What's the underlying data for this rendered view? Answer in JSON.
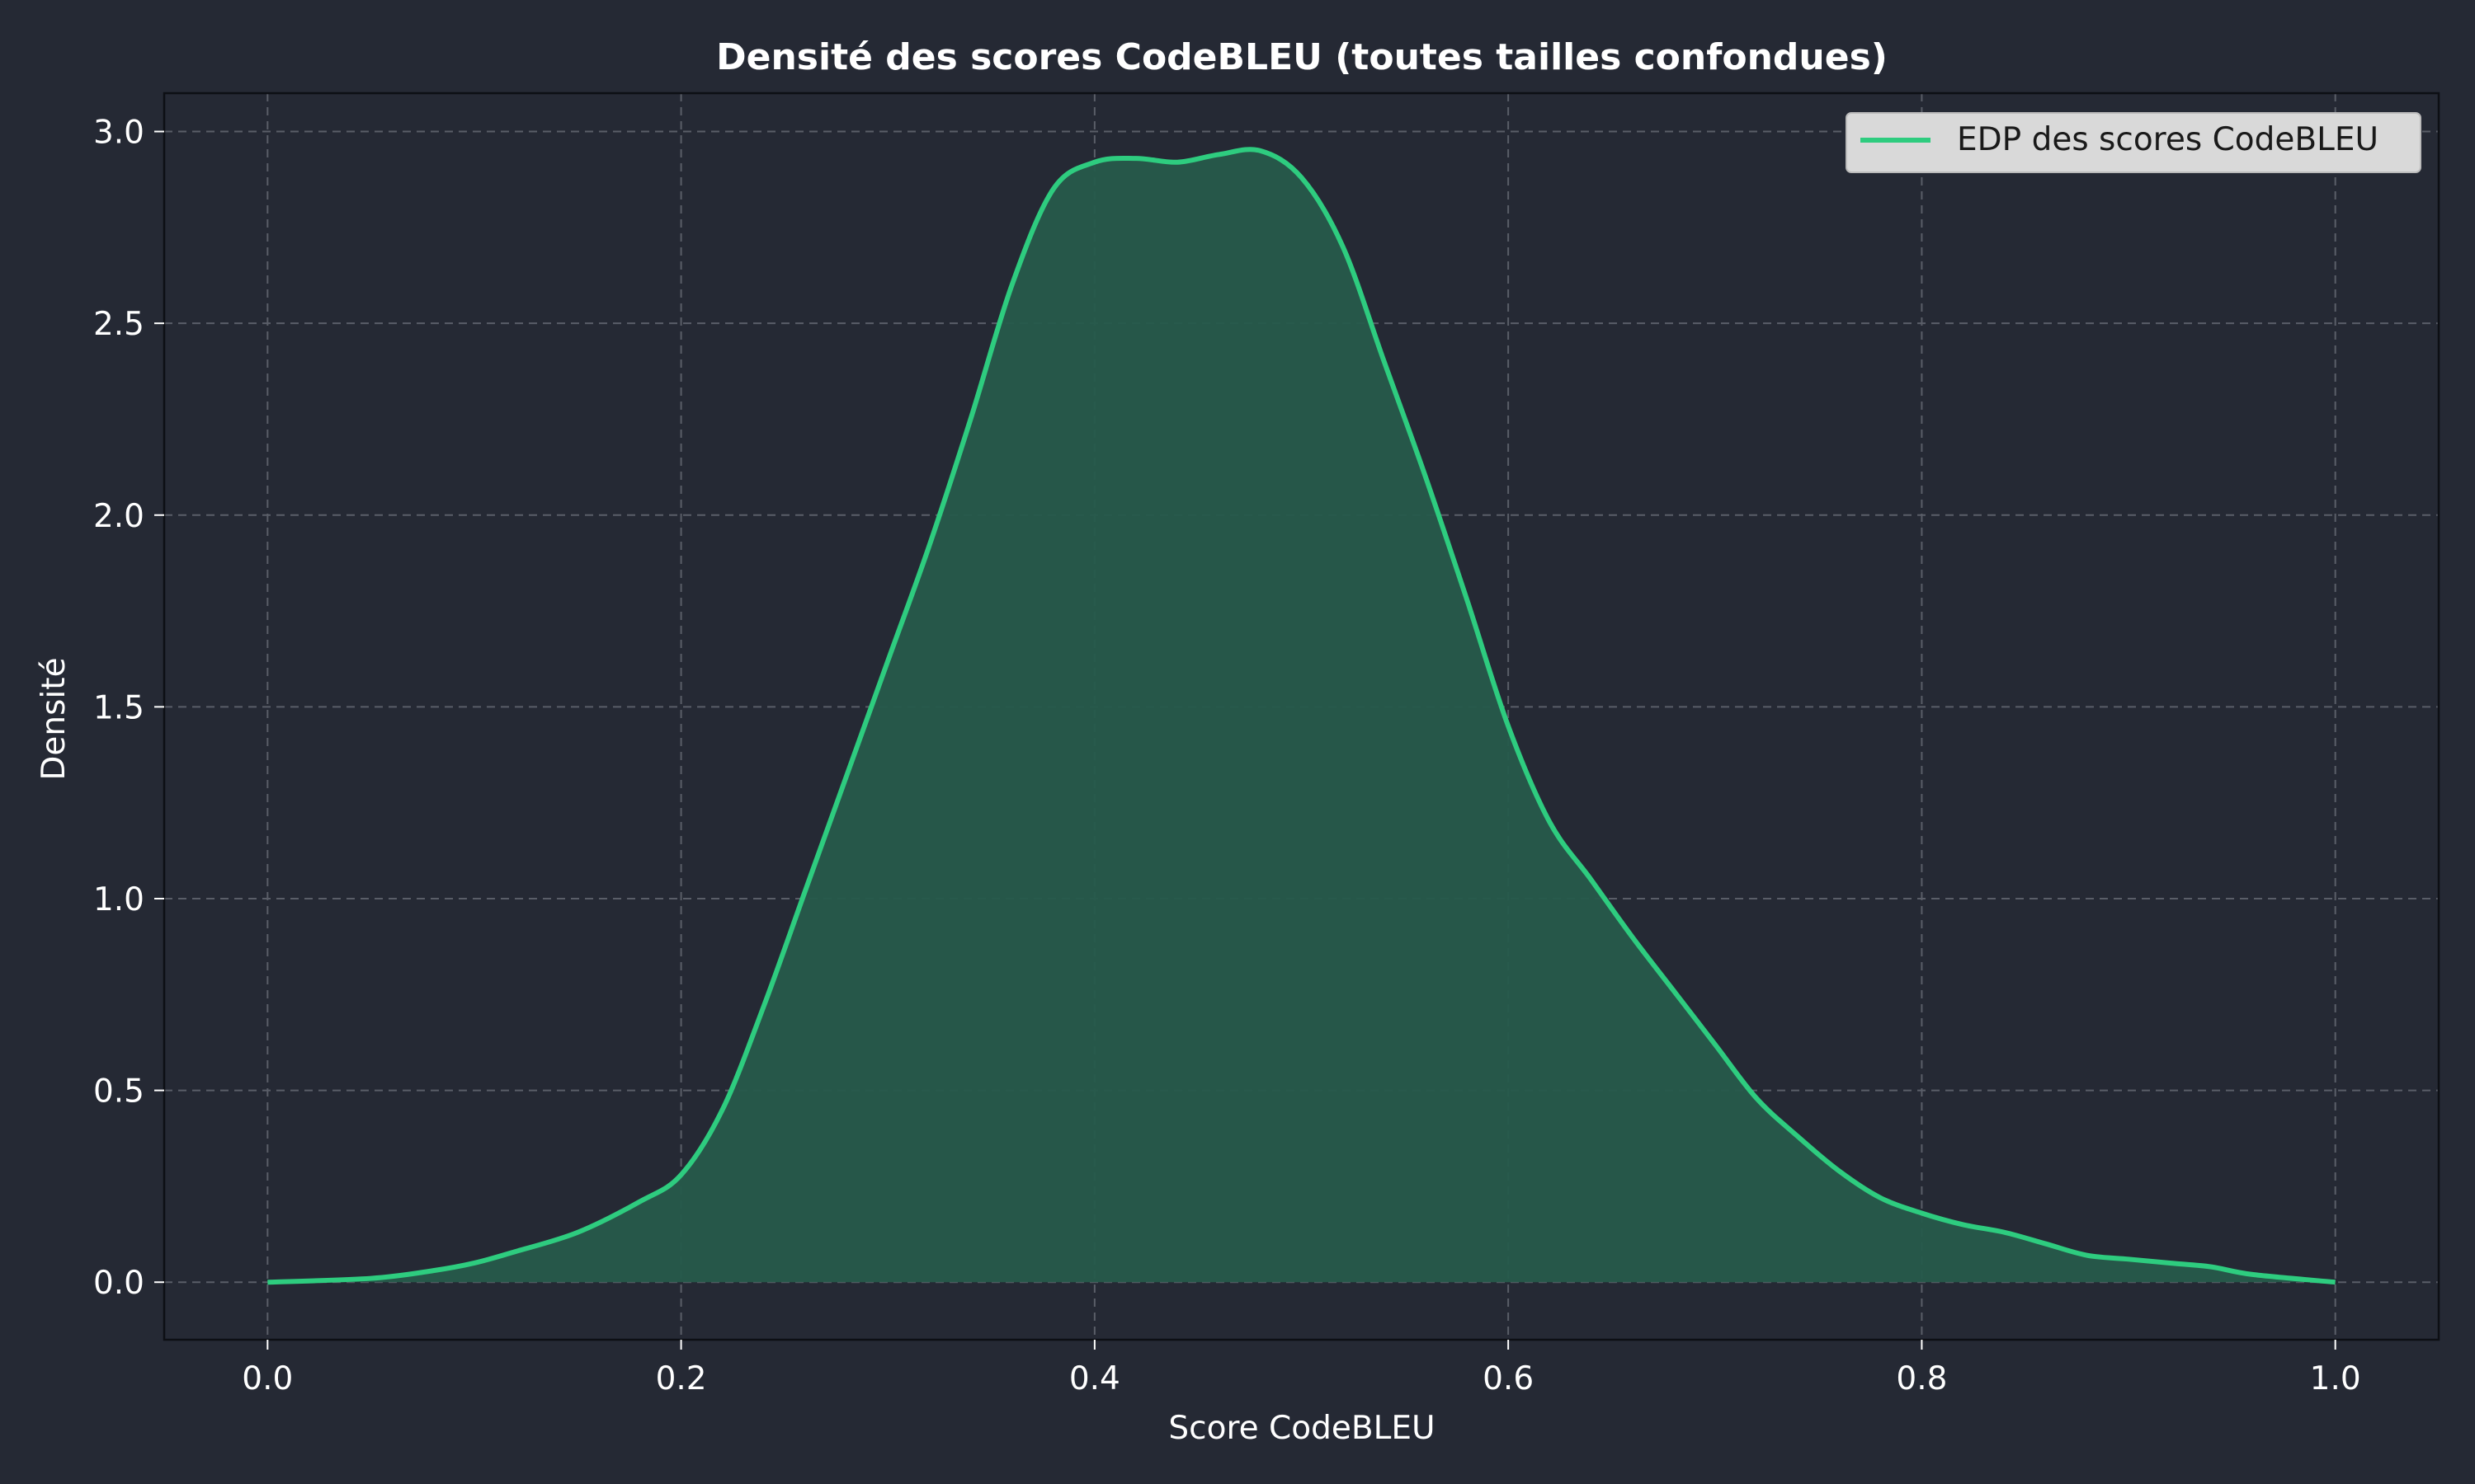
{
  "chart_data": {
    "type": "area",
    "title": "Densité des scores CodeBLEU (toutes tailles confondues)",
    "xlabel": "Score CodeBLEU",
    "ylabel": "Densité",
    "xlim": [
      -0.05,
      1.05
    ],
    "ylim": [
      -0.15,
      3.1
    ],
    "xticks": [
      0.0,
      0.2,
      0.4,
      0.6,
      0.8,
      1.0
    ],
    "xtick_labels": [
      "0.0",
      "0.2",
      "0.4",
      "0.6",
      "0.8",
      "1.0"
    ],
    "yticks": [
      0.0,
      0.5,
      1.0,
      1.5,
      2.0,
      2.5,
      3.0
    ],
    "ytick_labels": [
      "0.0",
      "0.5",
      "1.0",
      "1.5",
      "2.0",
      "2.5",
      "3.0"
    ],
    "grid": true,
    "legend_position": "top-right",
    "colors": {
      "background": "#252934",
      "line": "#2ecc7f",
      "fill": "#265a4b",
      "grid": "#5a5e68",
      "text": "#ffffff",
      "legend_bg": "#d9d9d9"
    },
    "series": [
      {
        "name": "EDP des scores CodeBLEU",
        "x": [
          0.0,
          0.05,
          0.08,
          0.1,
          0.12,
          0.15,
          0.18,
          0.2,
          0.22,
          0.24,
          0.26,
          0.28,
          0.3,
          0.32,
          0.34,
          0.36,
          0.38,
          0.4,
          0.42,
          0.44,
          0.46,
          0.48,
          0.5,
          0.52,
          0.54,
          0.56,
          0.58,
          0.6,
          0.62,
          0.64,
          0.66,
          0.68,
          0.7,
          0.72,
          0.74,
          0.76,
          0.78,
          0.8,
          0.82,
          0.84,
          0.86,
          0.88,
          0.9,
          0.92,
          0.94,
          0.96,
          1.0
        ],
        "y": [
          0.0,
          0.01,
          0.03,
          0.05,
          0.08,
          0.13,
          0.21,
          0.28,
          0.45,
          0.72,
          1.02,
          1.32,
          1.62,
          1.92,
          2.25,
          2.6,
          2.85,
          2.92,
          2.93,
          2.92,
          2.94,
          2.95,
          2.88,
          2.7,
          2.4,
          2.1,
          1.78,
          1.45,
          1.2,
          1.05,
          0.9,
          0.76,
          0.62,
          0.48,
          0.38,
          0.29,
          0.22,
          0.18,
          0.15,
          0.13,
          0.1,
          0.07,
          0.06,
          0.05,
          0.04,
          0.02,
          0.0
        ]
      }
    ]
  }
}
